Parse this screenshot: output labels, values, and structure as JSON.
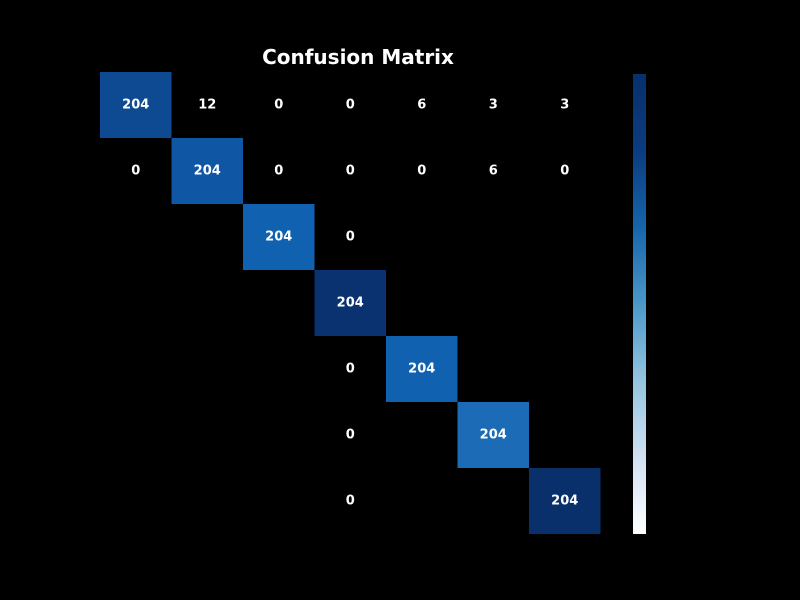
{
  "chart_data": {
    "type": "heatmap",
    "title": "Confusion Matrix",
    "xlabel": "",
    "ylabel": "",
    "rows": 7,
    "cols": 7,
    "cells": [
      {
        "row": 0,
        "col": 0,
        "value": "204",
        "shaded": true,
        "color": "#0d4a92"
      },
      {
        "row": 0,
        "col": 1,
        "value": "12",
        "shaded": false
      },
      {
        "row": 0,
        "col": 2,
        "value": "0",
        "shaded": false
      },
      {
        "row": 0,
        "col": 3,
        "value": "0",
        "shaded": false
      },
      {
        "row": 0,
        "col": 4,
        "value": "6",
        "shaded": false
      },
      {
        "row": 0,
        "col": 5,
        "value": "3",
        "shaded": false
      },
      {
        "row": 0,
        "col": 6,
        "value": "3",
        "shaded": false
      },
      {
        "row": 1,
        "col": 0,
        "value": "0",
        "shaded": false
      },
      {
        "row": 1,
        "col": 1,
        "value": "204",
        "shaded": true,
        "color": "#0f56a5"
      },
      {
        "row": 1,
        "col": 2,
        "value": "0",
        "shaded": false
      },
      {
        "row": 1,
        "col": 3,
        "value": "0",
        "shaded": false
      },
      {
        "row": 1,
        "col": 4,
        "value": "0",
        "shaded": false
      },
      {
        "row": 1,
        "col": 5,
        "value": "6",
        "shaded": false
      },
      {
        "row": 1,
        "col": 6,
        "value": "0",
        "shaded": false
      },
      {
        "row": 2,
        "col": 2,
        "value": "204",
        "shaded": true,
        "color": "#1161b1"
      },
      {
        "row": 2,
        "col": 3,
        "value": "0",
        "shaded": false
      },
      {
        "row": 3,
        "col": 3,
        "value": "204",
        "shaded": true,
        "color": "#0a3170"
      },
      {
        "row": 4,
        "col": 3,
        "value": "0",
        "shaded": false
      },
      {
        "row": 4,
        "col": 4,
        "value": "204",
        "shaded": true,
        "color": "#1161b1"
      },
      {
        "row": 5,
        "col": 3,
        "value": "0",
        "shaded": false
      },
      {
        "row": 5,
        "col": 5,
        "value": "204",
        "shaded": true,
        "color": "#1b6bb6"
      },
      {
        "row": 6,
        "col": 3,
        "value": "0",
        "shaded": false
      },
      {
        "row": 6,
        "col": 6,
        "value": "204",
        "shaded": true,
        "color": "#09306b"
      }
    ],
    "colorbar": {
      "stops": [
        "#ffffff",
        "#d0e1f2",
        "#94c4df",
        "#4a98c9",
        "#1764ab",
        "#0b3c7f",
        "#08306b"
      ]
    }
  }
}
